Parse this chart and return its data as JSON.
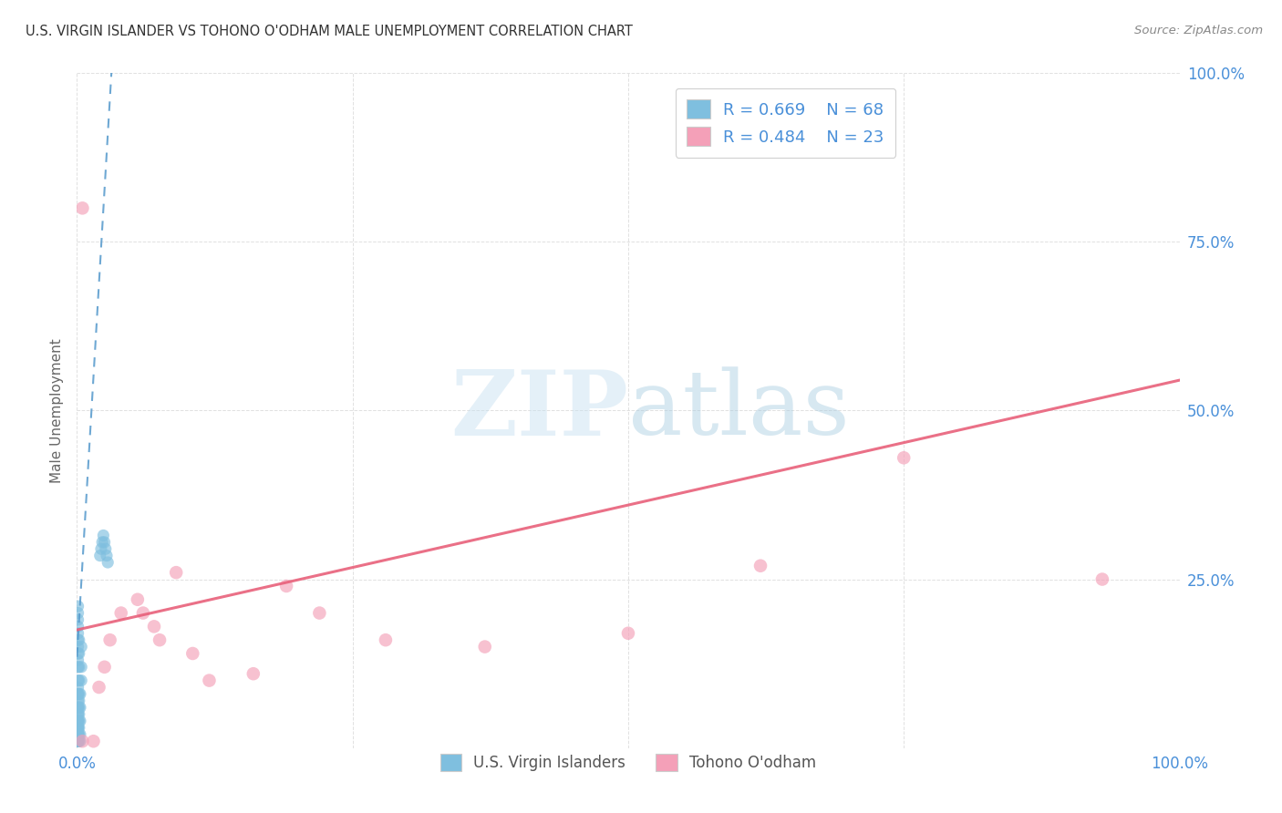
{
  "title": "U.S. VIRGIN ISLANDER VS TOHONO O'ODHAM MALE UNEMPLOYMENT CORRELATION CHART",
  "source": "Source: ZipAtlas.com",
  "ylabel": "Male Unemployment",
  "xlim": [
    0,
    1.0
  ],
  "ylim": [
    0,
    1.0
  ],
  "blue_color": "#7fbfdf",
  "pink_color": "#f4a0b8",
  "blue_line_color": "#5599cc",
  "pink_line_color": "#e8607a",
  "watermark_zip": "ZIP",
  "watermark_atlas": "atlas",
  "background_color": "#ffffff",
  "grid_color": "#dddddd",
  "blue_scatter_x": [
    0.001,
    0.001,
    0.001,
    0.001,
    0.001,
    0.001,
    0.001,
    0.001,
    0.001,
    0.001,
    0.001,
    0.001,
    0.001,
    0.001,
    0.001,
    0.001,
    0.001,
    0.001,
    0.001,
    0.001,
    0.001,
    0.001,
    0.001,
    0.001,
    0.001,
    0.001,
    0.001,
    0.001,
    0.001,
    0.001,
    0.001,
    0.001,
    0.001,
    0.001,
    0.001,
    0.001,
    0.001,
    0.001,
    0.001,
    0.001,
    0.002,
    0.002,
    0.002,
    0.002,
    0.002,
    0.002,
    0.002,
    0.002,
    0.002,
    0.002,
    0.002,
    0.002,
    0.003,
    0.003,
    0.003,
    0.003,
    0.003,
    0.004,
    0.004,
    0.004,
    0.021,
    0.022,
    0.023,
    0.024,
    0.025,
    0.026,
    0.027,
    0.028
  ],
  "blue_scatter_y": [
    0.01,
    0.01,
    0.01,
    0.01,
    0.01,
    0.01,
    0.01,
    0.01,
    0.01,
    0.015,
    0.015,
    0.015,
    0.02,
    0.02,
    0.02,
    0.02,
    0.03,
    0.03,
    0.03,
    0.04,
    0.04,
    0.05,
    0.05,
    0.06,
    0.06,
    0.07,
    0.08,
    0.08,
    0.09,
    0.1,
    0.12,
    0.13,
    0.14,
    0.15,
    0.16,
    0.17,
    0.18,
    0.19,
    0.2,
    0.21,
    0.01,
    0.02,
    0.03,
    0.04,
    0.05,
    0.06,
    0.07,
    0.08,
    0.1,
    0.12,
    0.14,
    0.16,
    0.01,
    0.02,
    0.04,
    0.06,
    0.08,
    0.1,
    0.12,
    0.15,
    0.285,
    0.295,
    0.305,
    0.315,
    0.305,
    0.295,
    0.285,
    0.275
  ],
  "pink_scatter_x": [
    0.005,
    0.015,
    0.02,
    0.025,
    0.03,
    0.04,
    0.055,
    0.06,
    0.07,
    0.075,
    0.09,
    0.105,
    0.12,
    0.16,
    0.19,
    0.22,
    0.28,
    0.37,
    0.5,
    0.62,
    0.75,
    0.93,
    0.005
  ],
  "pink_scatter_y": [
    0.01,
    0.01,
    0.09,
    0.12,
    0.16,
    0.2,
    0.22,
    0.2,
    0.18,
    0.16,
    0.26,
    0.14,
    0.1,
    0.11,
    0.24,
    0.2,
    0.16,
    0.15,
    0.17,
    0.27,
    0.43,
    0.25,
    0.8
  ],
  "pink_line_x0": 0.0,
  "pink_line_y0": 0.175,
  "pink_line_x1": 1.0,
  "pink_line_y1": 0.545,
  "blue_line_x0": 0.0,
  "blue_line_y0": 0.135,
  "blue_line_x1": 0.032,
  "blue_line_y1": 1.02
}
